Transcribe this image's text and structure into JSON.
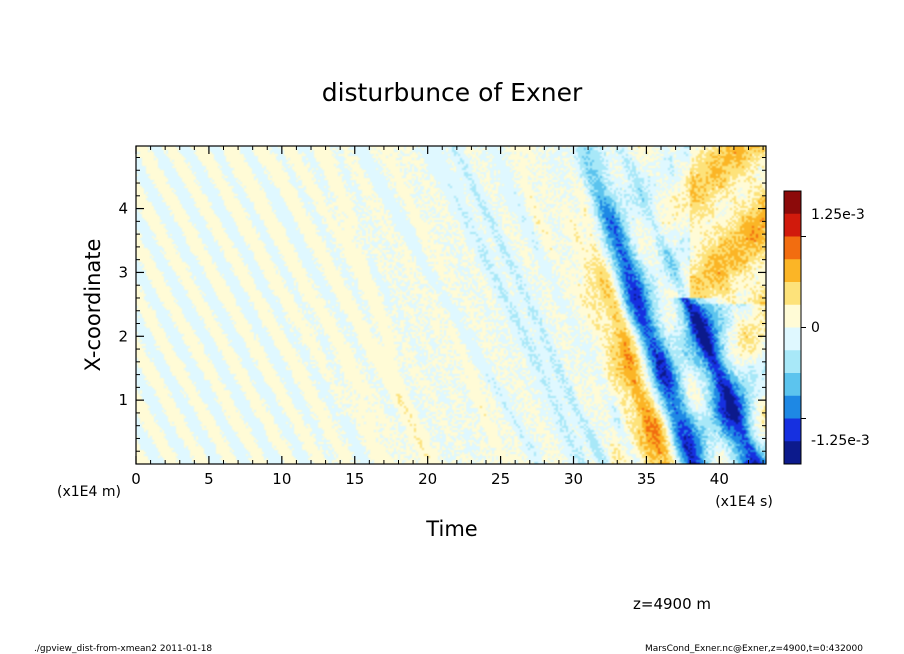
{
  "chart_data": {
    "type": "heatmap",
    "title": "disturbunce of Exner",
    "xlabel": "Time",
    "ylabel": "X-coordinate",
    "x_unit": "(x1E4 s)",
    "y_unit": "(x1E4 m)",
    "xlim": [
      0,
      43.2
    ],
    "ylim": [
      0,
      4.98
    ],
    "x_ticks": [
      "0",
      "5",
      "10",
      "15",
      "20",
      "25",
      "30",
      "35",
      "40"
    ],
    "y_ticks": [
      "1",
      "2",
      "3",
      "4"
    ],
    "colorbar": {
      "labels": [
        "1.25e-3",
        "0",
        "-1.25e-3"
      ],
      "levels": 12,
      "colors": [
        "#8c0a0a",
        "#d11a0c",
        "#f26d10",
        "#fbb526",
        "#fde27a",
        "#fffbd6",
        "#dff8ff",
        "#a8e8f8",
        "#5cc4ee",
        "#1e88e4",
        "#1630e0",
        "#0c1a8c"
      ]
    }
  },
  "info_label": "z=4900 m",
  "footer_left": "./gpview_dist-from-xmean2  2011-01-18",
  "footer_right": "MarsCond_Exner.nc@Exner,z=4900,t=0:432000"
}
